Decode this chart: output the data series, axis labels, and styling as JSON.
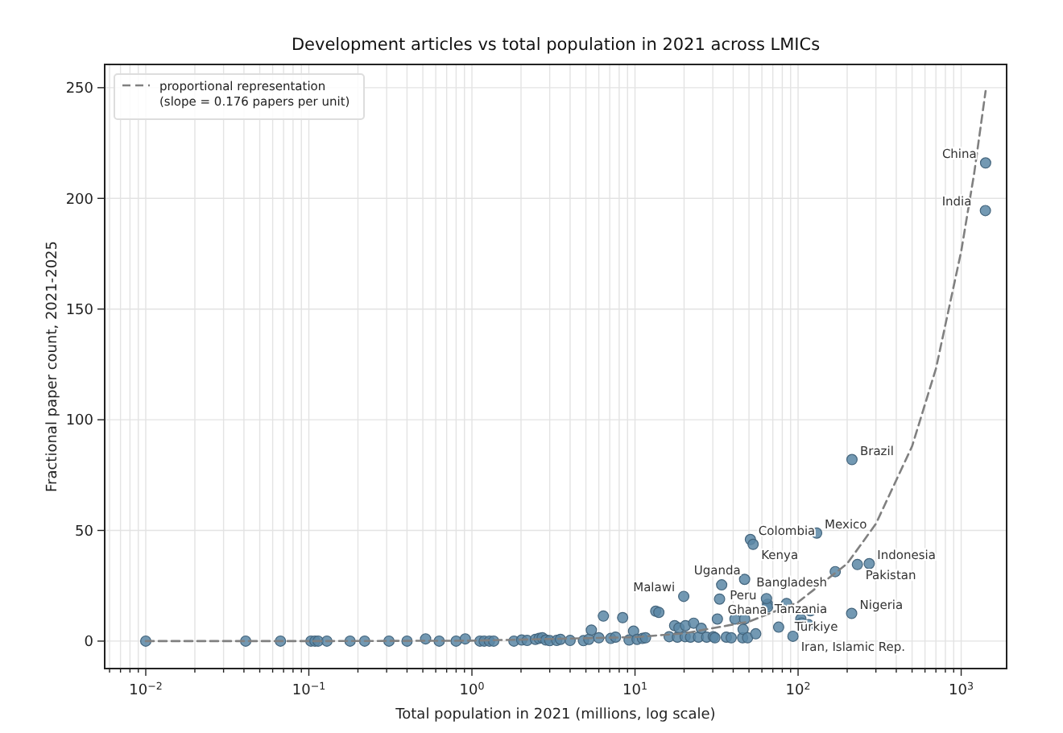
{
  "chart_data": {
    "type": "scatter",
    "title": "Development articles vs total population in 2021 across LMICs",
    "xlabel": "Total population in 2021 (millions, log scale)",
    "ylabel": "Fractional paper count, 2021-2025",
    "log": "x",
    "grid": true,
    "legend": "top left",
    "marker": "circle",
    "xlim": [
      0.0056,
      1900
    ],
    "ylim": [
      -12.4,
      260.5
    ],
    "xticks": [
      {
        "value": 0.006,
        "label": null
      },
      {
        "value": 0.007,
        "label": null
      },
      {
        "value": 0.008,
        "label": null
      },
      {
        "value": 0.009,
        "label": null
      },
      {
        "value": 0.01,
        "label": "10$^{−2}$"
      },
      {
        "value": 0.02,
        "label": null
      },
      {
        "value": 0.03,
        "label": null
      },
      {
        "value": 0.04,
        "label": null
      },
      {
        "value": 0.05,
        "label": null
      },
      {
        "value": 0.06,
        "label": null
      },
      {
        "value": 0.07,
        "label": null
      },
      {
        "value": 0.08,
        "label": null
      },
      {
        "value": 0.09,
        "label": null
      },
      {
        "value": 0.1,
        "label": "10$^{−1}$"
      },
      {
        "value": 0.2,
        "label": null
      },
      {
        "value": 0.3,
        "label": null
      },
      {
        "value": 0.4,
        "label": null
      },
      {
        "value": 0.5,
        "label": null
      },
      {
        "value": 0.6,
        "label": null
      },
      {
        "value": 0.7,
        "label": null
      },
      {
        "value": 0.8,
        "label": null
      },
      {
        "value": 0.9,
        "label": null
      },
      {
        "value": 1,
        "label": "10$^{0}$"
      },
      {
        "value": 2,
        "label": null
      },
      {
        "value": 3,
        "label": null
      },
      {
        "value": 4,
        "label": null
      },
      {
        "value": 5,
        "label": null
      },
      {
        "value": 6,
        "label": null
      },
      {
        "value": 7,
        "label": null
      },
      {
        "value": 8,
        "label": null
      },
      {
        "value": 9,
        "label": null
      },
      {
        "value": 10,
        "label": "10$^{1}$"
      },
      {
        "value": 20,
        "label": null
      },
      {
        "value": 30,
        "label": null
      },
      {
        "value": 40,
        "label": null
      },
      {
        "value": 50,
        "label": null
      },
      {
        "value": 60,
        "label": null
      },
      {
        "value": 70,
        "label": null
      },
      {
        "value": 80,
        "label": null
      },
      {
        "value": 90,
        "label": null
      },
      {
        "value": 100,
        "label": "10$^{2}$"
      },
      {
        "value": 200,
        "label": null
      },
      {
        "value": 300,
        "label": null
      },
      {
        "value": 400,
        "label": null
      },
      {
        "value": 500,
        "label": null
      },
      {
        "value": 600,
        "label": null
      },
      {
        "value": 700,
        "label": null
      },
      {
        "value": 800,
        "label": null
      },
      {
        "value": 900,
        "label": null
      },
      {
        "value": 1000,
        "label": "10$^{3}$"
      }
    ],
    "yticks": [
      0,
      50,
      100,
      150,
      200,
      250
    ],
    "series": [
      {
        "color": "#5b87a6",
        "x": [
          0.01,
          0.041,
          0.067,
          0.103,
          0.109,
          0.114,
          0.129,
          0.179,
          0.22,
          0.31,
          0.4,
          0.52,
          0.63,
          0.8,
          0.91,
          1.12,
          1.19,
          1.28,
          1.36,
          1.81,
          2.02,
          2.18,
          2.45,
          2.58,
          2.7,
          2.84,
          3.0,
          3.31,
          3.49,
          4.0,
          4.83,
          5.21,
          5.4,
          6.0,
          6.4,
          7.1,
          7.6,
          8.4,
          9.2,
          9.8,
          10.3,
          11.1,
          11.6,
          13.4,
          14,
          16.2,
          17.5,
          18.2,
          18.6,
          20.3,
          20.4,
          21.9,
          22.9,
          24.5,
          25.5,
          27.5,
          30.2,
          30.9,
          32,
          36.3,
          38.9,
          41,
          45.7,
          46,
          47,
          49,
          55,
          65,
          65,
          76,
          104,
          105,
          116,
          119,
          1412,
          1408,
          214,
          130,
          51,
          53,
          273,
          231,
          169,
          47,
          34,
          19.9,
          33,
          64,
          85,
          213,
          93
        ],
        "values": [
          0,
          0,
          0,
          0,
          0,
          0,
          0,
          0,
          0,
          0,
          0,
          1,
          0,
          0,
          1,
          0,
          0,
          0,
          0,
          0,
          0.5,
          0.3,
          0.8,
          1.2,
          1.5,
          0.5,
          0.2,
          0.3,
          0.8,
          0.3,
          0.2,
          0.8,
          5,
          1.5,
          11.3,
          1.2,
          1.8,
          10.6,
          0.5,
          4.5,
          0.8,
          1.2,
          1.5,
          13.5,
          13,
          2,
          7,
          1.8,
          6,
          2,
          7,
          1.8,
          8.1,
          1.8,
          5.8,
          1.8,
          2,
          1.5,
          10,
          1.8,
          1.5,
          10,
          1.5,
          5.3,
          10,
          1.5,
          3.3,
          16.6,
          15.4,
          6.3,
          10,
          8.2,
          7.4,
          13.7,
          216,
          194.5,
          82,
          48.8,
          45.9,
          43.7,
          35,
          34.6,
          31.4,
          27.9,
          25.4,
          20.2,
          19,
          19.2,
          17,
          12.5,
          2.2
        ]
      },
      {
        "type": "line",
        "name": "proportional representation\n(slope = 0.176 papers per unit)",
        "color": "#808080",
        "line_style": "dashed",
        "marker": "none",
        "x": [
          0.01,
          0.1,
          1,
          10,
          20,
          50,
          100,
          200,
          300,
          500,
          700,
          1000,
          1200,
          1412
        ],
        "values": [
          0,
          0,
          0.2,
          1.8,
          3.5,
          8.8,
          17.6,
          35,
          53,
          88,
          123,
          176,
          211,
          248.5
        ]
      }
    ],
    "annotations": [
      {
        "text": "China",
        "x": 1412,
        "y": 216
      },
      {
        "text": "India",
        "x": 1408,
        "y": 194.5
      },
      {
        "text": "Brazil",
        "x": 214,
        "y": 82
      },
      {
        "text": "Mexico",
        "x": 130,
        "y": 48.8
      },
      {
        "text": "Colombia",
        "x": 51,
        "y": 45.9
      },
      {
        "text": "Kenya",
        "x": 53,
        "y": 43.7
      },
      {
        "text": "Indonesia",
        "x": 273,
        "y": 35
      },
      {
        "text": "Pakistan",
        "x": 231,
        "y": 34.6
      },
      {
        "text": "Bangladesh",
        "x": 169,
        "y": 31.4
      },
      {
        "text": "Uganda",
        "x": 47,
        "y": 27.9
      },
      {
        "text": "Peru",
        "x": 34,
        "y": 25.4
      },
      {
        "text": "Malawi",
        "x": 19.9,
        "y": 20.2
      },
      {
        "text": "Ghana",
        "x": 33,
        "y": 19
      },
      {
        "text": "Tanzania",
        "x": 64,
        "y": 19.2
      },
      {
        "text": "Türkiye",
        "x": 85,
        "y": 17
      },
      {
        "text": "Nigeria",
        "x": 213,
        "y": 12.5
      },
      {
        "text": "Iran, Islamic Rep.",
        "x": 93,
        "y": 2.2
      }
    ]
  }
}
